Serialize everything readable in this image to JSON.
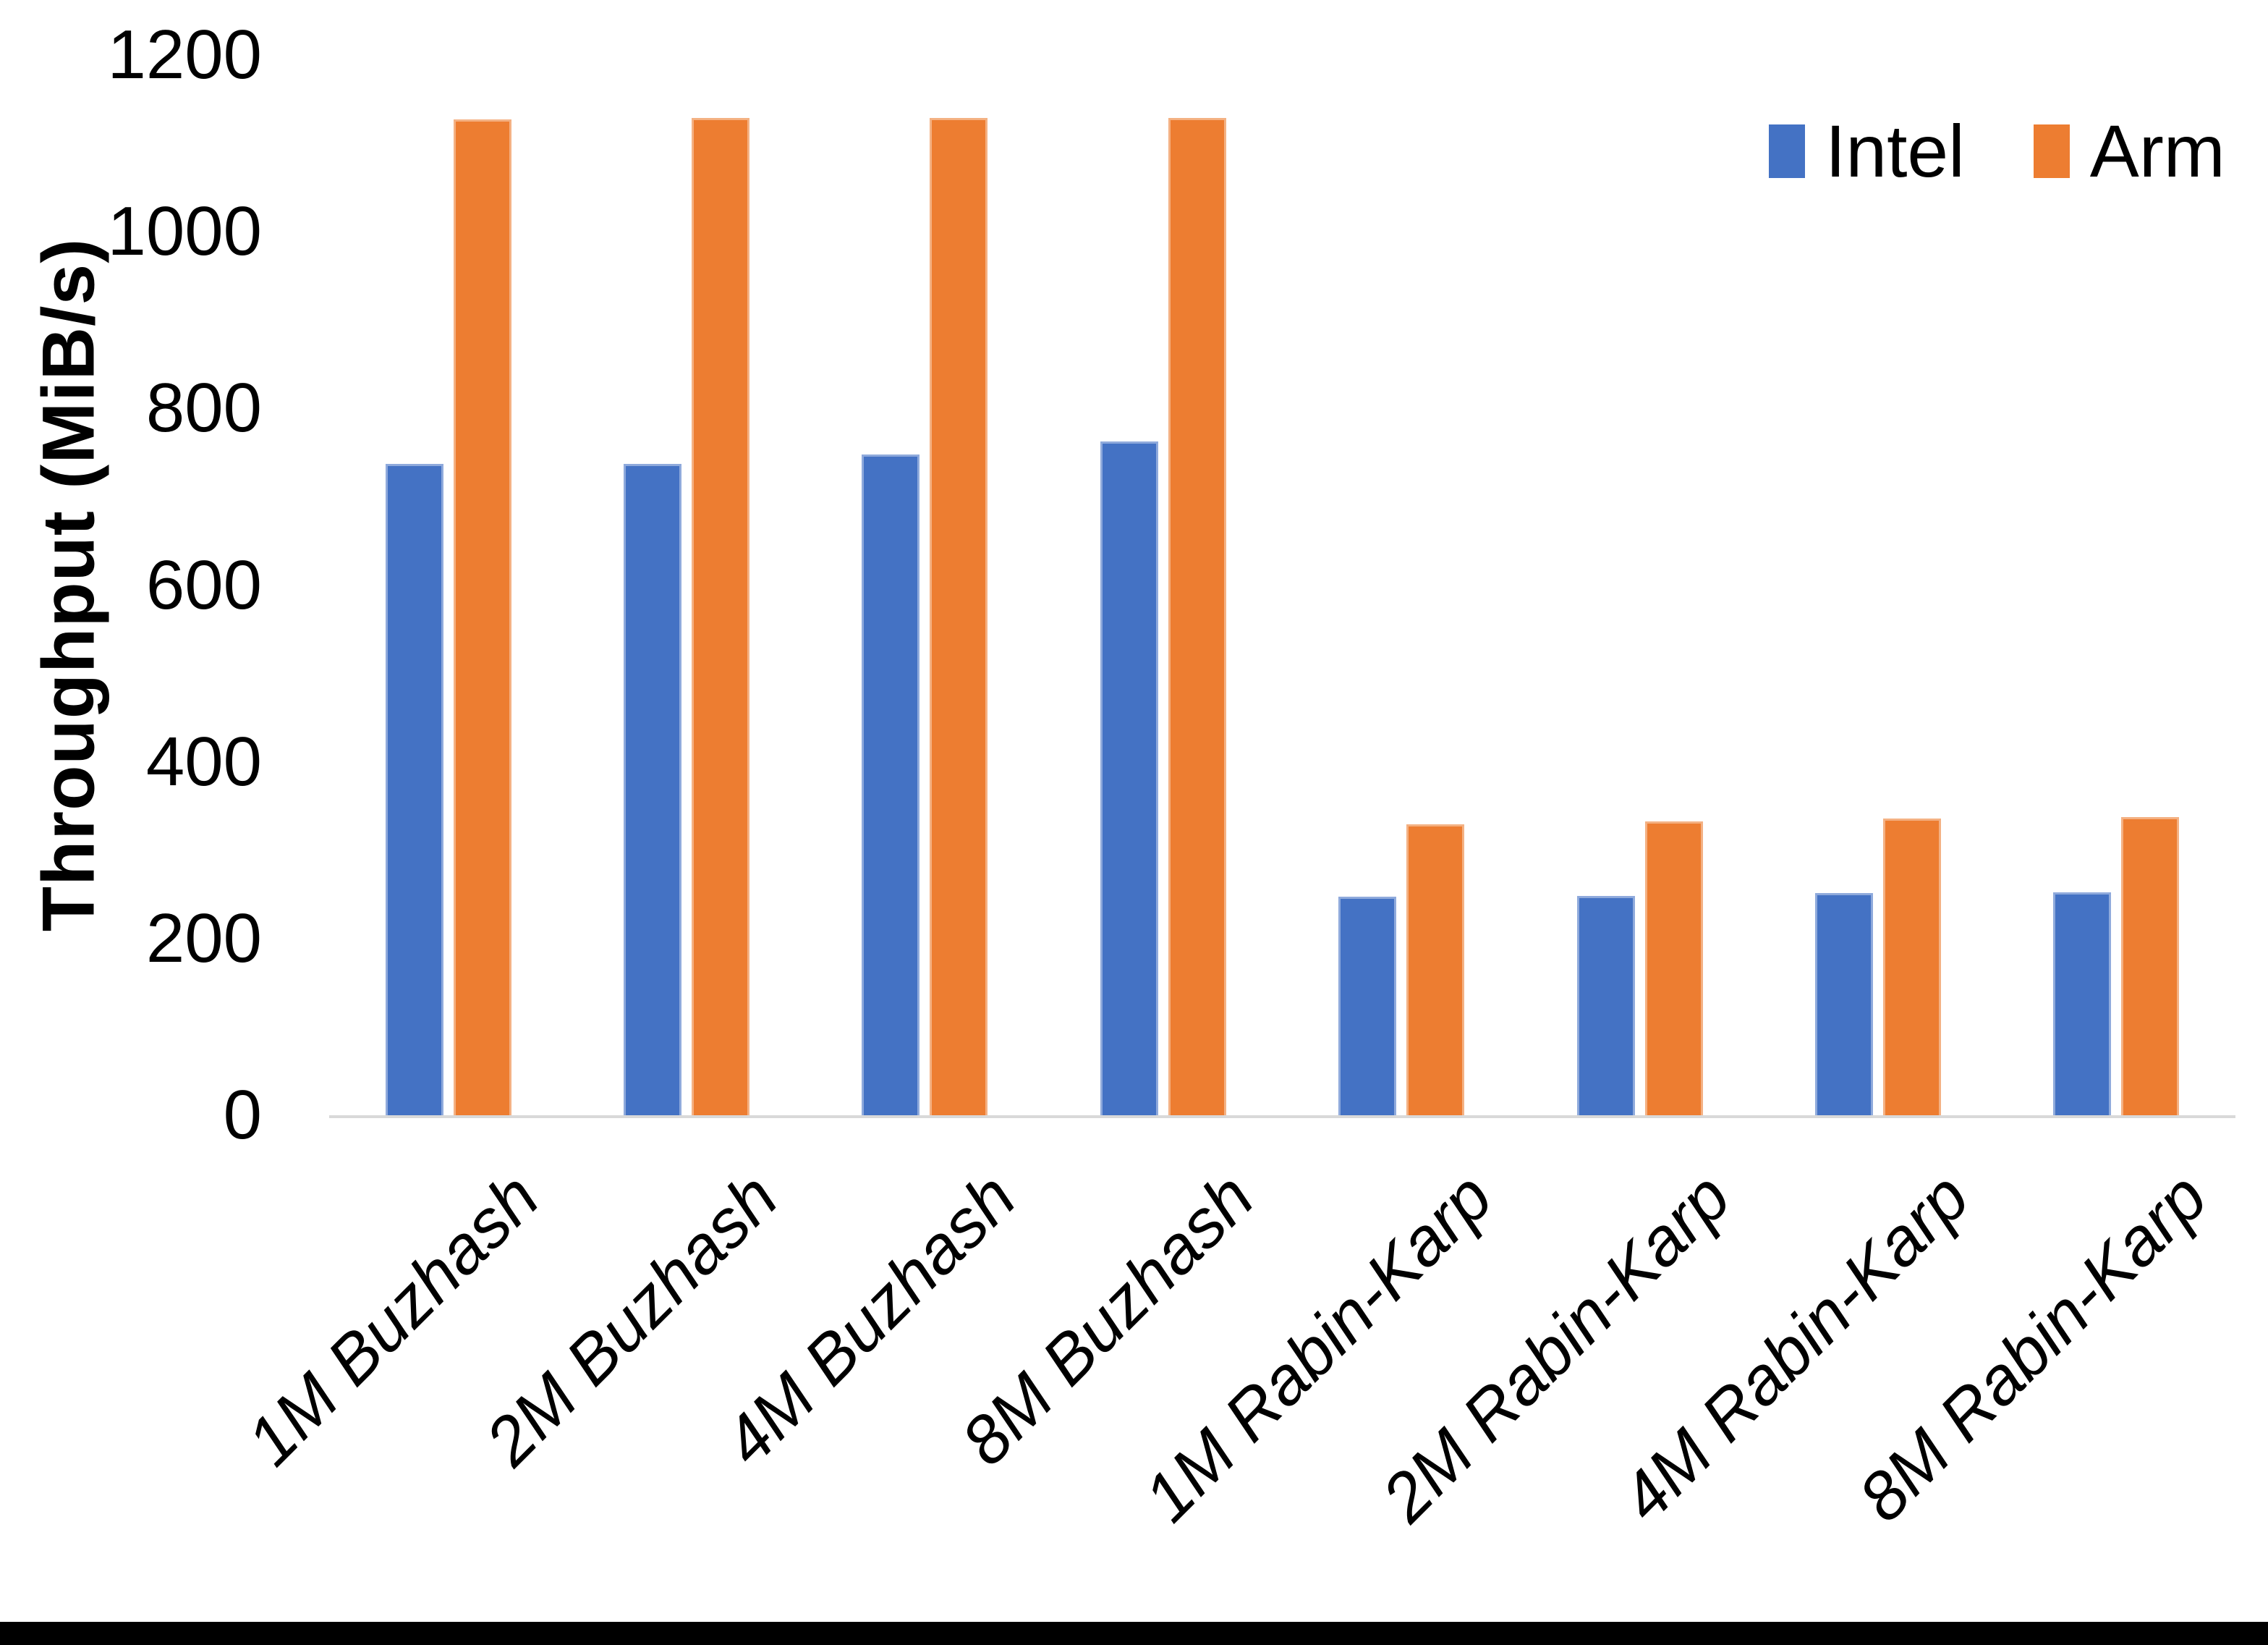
{
  "chart_data": {
    "type": "bar",
    "title": "",
    "xlabel": "",
    "ylabel": "Throughput (MiB/s)",
    "categories": [
      "1M Buzhash",
      "2M Buzhash",
      "4M Buzhash",
      "8M Buzhash",
      "1M Rabin-Karp",
      "2M Rabin-Karp",
      "4M Rabin-Karp",
      "8M Rabin-Karp"
    ],
    "series": [
      {
        "name": "Intel",
        "color": "#4472C4",
        "border_color": "#8FAADC",
        "values": [
          735,
          735,
          745,
          760,
          245,
          246,
          249,
          250
        ]
      },
      {
        "name": "Arm",
        "color": "#ED7D31",
        "border_color": "#F4B183",
        "values": [
          1125,
          1126,
          1126,
          1126,
          327,
          330,
          333,
          335
        ]
      }
    ],
    "ylim": [
      0,
      1200
    ],
    "ytick_step": 200,
    "yticks": [
      "0",
      "200",
      "400",
      "600",
      "800",
      "1000",
      "1200"
    ],
    "grid": false,
    "legend_position": "top-right",
    "axis_line_color": "#D9D9D9",
    "text_color": "#000000",
    "background_color": "#FFFFFF",
    "bottom_border_color": "#000000"
  }
}
